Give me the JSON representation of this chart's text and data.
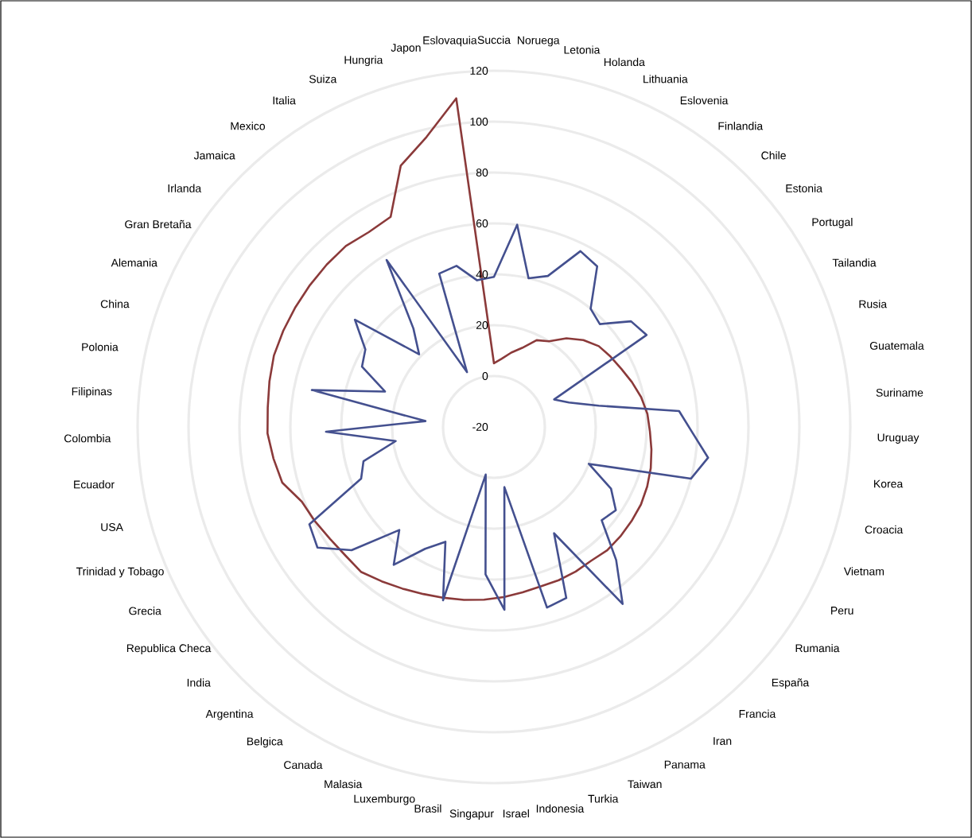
{
  "chart_data": {
    "type": "radar",
    "categories": [
      "Succia",
      "Noruega",
      "Letonia",
      "Holanda",
      "Lithuania",
      "Eslovenia",
      "Finlandia",
      "Chile",
      "Estonia",
      "Portugal",
      "Tailandia",
      "Rusia",
      "Guatemala",
      "Suriname",
      "Uruguay",
      "Korea",
      "Croacia",
      "Vietnam",
      "Peru",
      "Rumania",
      "España",
      "Francia",
      "Iran",
      "Panama",
      "Taiwan",
      "Turkia",
      "Indonesia",
      "Israel",
      "Singapur",
      "Brasil",
      "Luxemburgo",
      "Malasia",
      "Canada",
      "Belgica",
      "Argentina",
      "India",
      "Republica Checa",
      "Grecia",
      "Trinidad y Tobago",
      "USA",
      "Ecuador",
      "Colombia",
      "Filipinas",
      "Polonia",
      "China",
      "Alemania",
      "Gran Bretaña",
      "Irlanda",
      "Jamaica",
      "Mexico",
      "Italia",
      "Suiza",
      "Hungria",
      "Japon",
      "Eslovaquia"
    ],
    "series": [
      {
        "color": "#8b3a3a",
        "values": [
          5,
          7,
          10,
          13,
          18,
          20,
          25,
          29,
          32,
          33.5,
          35,
          37,
          39,
          40.5,
          41.3,
          42.5,
          43.7,
          44.6,
          45.3,
          45.5,
          45.7,
          45.8,
          45,
          45.3,
          45.4,
          45.3,
          46,
          47,
          48,
          49,
          50,
          51.3,
          53,
          55,
          57.3,
          57.2,
          58,
          59.5,
          61,
          66,
          67.5,
          69,
          69.2,
          70,
          70.9,
          71,
          71.1,
          71.3,
          71.6,
          71.9,
          71,
          72,
          89,
          97,
          110
        ]
      },
      {
        "color": "#44508f",
        "values": [
          39,
          60,
          40,
          43,
          57,
          55,
          40,
          38,
          48,
          50,
          6,
          11,
          22,
          53,
          58,
          65,
          60,
          20,
          32,
          38,
          36,
          51,
          66,
          28,
          53,
          54,
          4,
          52,
          38,
          -1,
          51,
          29,
          35,
          47,
          35,
          54,
          64,
          62,
          36,
          33,
          19,
          46,
          7,
          53,
          25,
          37,
          39,
          49,
          21,
          30,
          58,
          4,
          44,
          45,
          38
        ]
      }
    ],
    "ylim": [
      -20,
      120
    ],
    "yticks": [
      -20,
      0,
      20,
      40,
      60,
      80,
      100,
      120
    ],
    "grid": true
  }
}
